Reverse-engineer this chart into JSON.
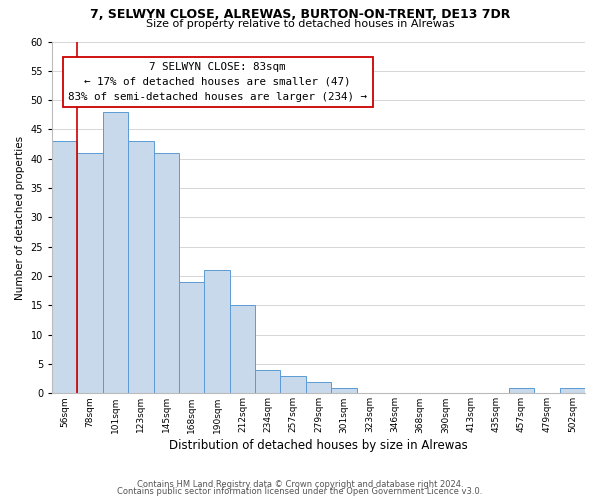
{
  "title": "7, SELWYN CLOSE, ALREWAS, BURTON-ON-TRENT, DE13 7DR",
  "subtitle": "Size of property relative to detached houses in Alrewas",
  "xlabel": "Distribution of detached houses by size in Alrewas",
  "ylabel": "Number of detached properties",
  "bin_labels": [
    "56sqm",
    "78sqm",
    "101sqm",
    "123sqm",
    "145sqm",
    "168sqm",
    "190sqm",
    "212sqm",
    "234sqm",
    "257sqm",
    "279sqm",
    "301sqm",
    "323sqm",
    "346sqm",
    "368sqm",
    "390sqm",
    "413sqm",
    "435sqm",
    "457sqm",
    "479sqm",
    "502sqm"
  ],
  "bar_heights": [
    43,
    41,
    48,
    43,
    41,
    19,
    21,
    15,
    4,
    3,
    2,
    1,
    0,
    0,
    0,
    0,
    0,
    0,
    1,
    0,
    1
  ],
  "bar_color": "#c8d9ec",
  "bar_edge_color": "#5b9bd5",
  "vline_x": 1.0,
  "vline_color": "#cc0000",
  "annotation_line1": "7 SELWYN CLOSE: 83sqm",
  "annotation_line2": "← 17% of detached houses are smaller (47)",
  "annotation_line3": "83% of semi-detached houses are larger (234) →",
  "annotation_box_color": "#ffffff",
  "annotation_box_edge": "#cc0000",
  "ylim": [
    0,
    60
  ],
  "yticks": [
    0,
    5,
    10,
    15,
    20,
    25,
    30,
    35,
    40,
    45,
    50,
    55,
    60
  ],
  "footer_line1": "Contains HM Land Registry data © Crown copyright and database right 2024.",
  "footer_line2": "Contains public sector information licensed under the Open Government Licence v3.0.",
  "background_color": "#ffffff",
  "grid_color": "#d0d0d0"
}
